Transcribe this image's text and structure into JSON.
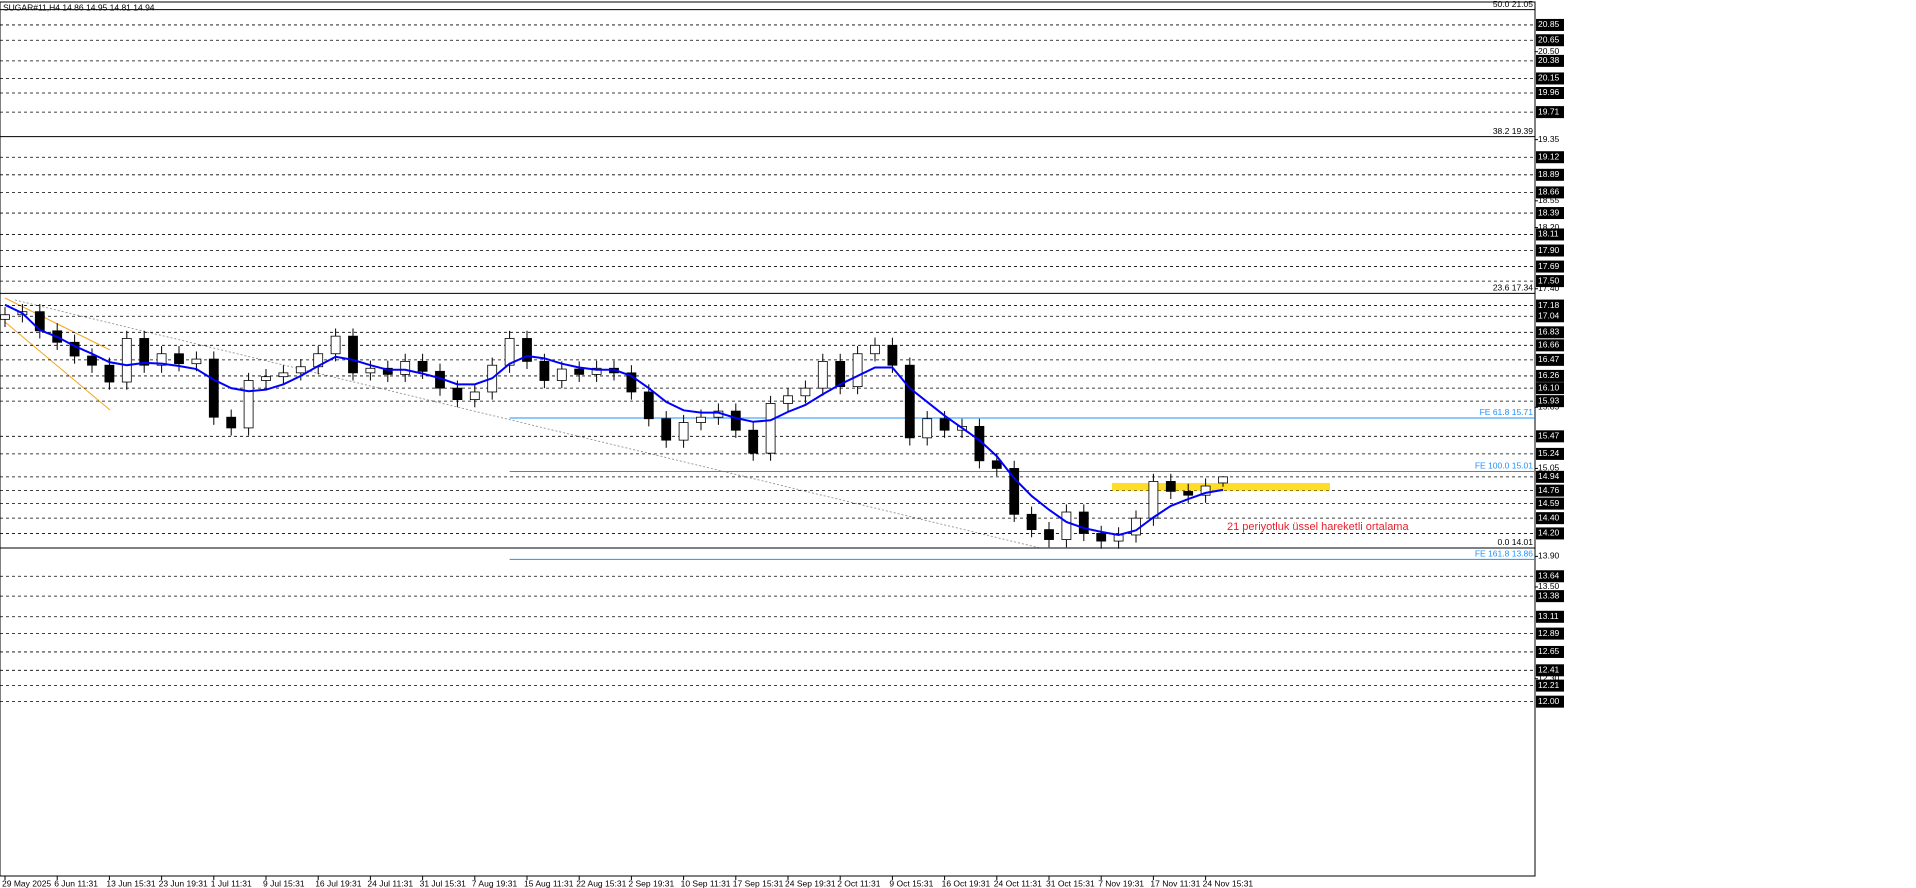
{
  "chart_data": {
    "type": "candlestick",
    "header": "SUGAR#11,H4  14.86 14.95 14.81 14.94",
    "categories": [
      "29 May 2025",
      null,
      null,
      "6 Jun 11:31",
      null,
      null,
      "13 Jun 15:31",
      null,
      null,
      "23 Jun 19:31",
      null,
      null,
      "1 Jul 11:31",
      null,
      null,
      "9 Jul 15:31",
      null,
      null,
      "16 Jul 19:31",
      null,
      null,
      "24 Jul 11:31",
      null,
      null,
      "31 Jul 15:31",
      null,
      null,
      "7 Aug 19:31",
      null,
      null,
      "15 Aug 11:31",
      null,
      null,
      "22 Aug 15:31",
      null,
      null,
      "2 Sep 19:31",
      null,
      null,
      "10 Sep 11:31",
      null,
      null,
      "17 Sep 15:31",
      null,
      null,
      "24 Sep 19:31",
      null,
      null,
      "2 Oct 11:31",
      null,
      null,
      "9 Oct 15:31",
      null,
      null,
      "16 Oct 19:31",
      null,
      null,
      "24 Oct 11:31",
      null,
      null,
      "31 Oct 15:31",
      null,
      null,
      "7 Nov 19:31",
      null,
      null,
      "17 Nov 11:31",
      null,
      null,
      "24 Nov 15:31",
      null
    ],
    "open": [
      17.0,
      17.06,
      17.1,
      16.85,
      16.7,
      16.52,
      16.4,
      16.18,
      16.75,
      16.4,
      16.55,
      16.42,
      16.48,
      15.72,
      15.58,
      16.2,
      16.25,
      16.3,
      16.38,
      16.55,
      16.78,
      16.3,
      16.36,
      16.28,
      16.45,
      16.32,
      16.1,
      15.95,
      16.05,
      16.4,
      16.75,
      16.45,
      16.2,
      16.35,
      16.28,
      16.36,
      16.3,
      16.05,
      15.7,
      15.42,
      15.65,
      15.72,
      15.8,
      15.55,
      15.25,
      15.9,
      16.0,
      16.1,
      16.45,
      16.12,
      16.55,
      16.66,
      16.4,
      15.45,
      15.7,
      15.55,
      15.6,
      15.15,
      15.05,
      14.45,
      14.25,
      14.12,
      14.48,
      14.2,
      14.1,
      14.18,
      14.4,
      14.88,
      14.75,
      14.7,
      14.86
    ],
    "high": [
      17.16,
      17.2,
      17.2,
      16.95,
      16.8,
      16.62,
      16.5,
      16.85,
      16.85,
      16.65,
      16.65,
      16.58,
      16.58,
      15.82,
      16.3,
      16.35,
      16.4,
      16.48,
      16.65,
      16.88,
      16.88,
      16.46,
      16.46,
      16.55,
      16.55,
      16.42,
      16.2,
      16.15,
      16.5,
      16.85,
      16.85,
      16.55,
      16.45,
      16.45,
      16.46,
      16.46,
      16.4,
      16.15,
      15.8,
      15.75,
      15.82,
      15.9,
      15.9,
      15.65,
      16.0,
      16.1,
      16.2,
      16.55,
      16.55,
      16.65,
      16.76,
      16.76,
      16.5,
      15.8,
      15.8,
      15.7,
      15.7,
      15.25,
      15.15,
      14.55,
      14.35,
      14.58,
      14.58,
      14.3,
      14.28,
      14.5,
      14.98,
      14.98,
      14.85,
      14.92,
      14.95
    ],
    "low": [
      16.9,
      16.96,
      16.75,
      16.6,
      16.42,
      16.3,
      16.08,
      16.08,
      16.3,
      16.3,
      16.32,
      16.32,
      15.62,
      15.48,
      15.48,
      16.1,
      16.15,
      16.2,
      16.28,
      16.45,
      16.2,
      16.2,
      16.18,
      16.18,
      16.22,
      16.0,
      15.85,
      15.85,
      15.95,
      16.3,
      16.35,
      16.1,
      16.1,
      16.18,
      16.18,
      16.2,
      15.95,
      15.6,
      15.32,
      15.32,
      15.55,
      15.62,
      15.45,
      15.15,
      15.15,
      15.8,
      15.9,
      16.0,
      16.02,
      16.02,
      16.45,
      16.3,
      15.35,
      15.35,
      15.45,
      15.45,
      15.05,
      14.95,
      14.35,
      14.15,
      14.02,
      14.02,
      14.1,
      14.0,
      14.0,
      14.08,
      14.3,
      14.65,
      14.6,
      14.6,
      14.81
    ],
    "close": [
      17.06,
      17.1,
      16.85,
      16.7,
      16.52,
      16.4,
      16.18,
      16.75,
      16.4,
      16.55,
      16.42,
      16.48,
      15.72,
      15.58,
      16.2,
      16.25,
      16.3,
      16.38,
      16.55,
      16.78,
      16.3,
      16.36,
      16.28,
      16.45,
      16.32,
      16.1,
      15.95,
      16.05,
      16.4,
      16.75,
      16.45,
      16.2,
      16.35,
      16.28,
      16.36,
      16.3,
      16.05,
      15.7,
      15.42,
      15.65,
      15.72,
      15.8,
      15.55,
      15.25,
      15.9,
      16.0,
      16.1,
      16.45,
      16.12,
      16.55,
      16.66,
      16.4,
      15.45,
      15.7,
      15.55,
      15.6,
      15.15,
      15.05,
      14.45,
      14.25,
      14.12,
      14.48,
      14.2,
      14.1,
      14.18,
      14.4,
      14.88,
      14.75,
      14.7,
      14.82,
      14.94
    ],
    "ema": {
      "color": "#0000ff",
      "values": [
        17.19,
        17.08,
        16.86,
        16.77,
        16.65,
        16.55,
        16.44,
        16.4,
        16.43,
        16.42,
        16.39,
        16.35,
        16.21,
        16.1,
        16.06,
        16.08,
        16.15,
        16.26,
        16.39,
        16.51,
        16.47,
        16.4,
        16.34,
        16.34,
        16.29,
        16.23,
        16.15,
        16.15,
        16.23,
        16.42,
        16.52,
        16.49,
        16.42,
        16.37,
        16.34,
        16.34,
        16.26,
        16.1,
        15.92,
        15.81,
        15.78,
        15.78,
        15.71,
        15.66,
        15.68,
        15.79,
        15.88,
        16.02,
        16.15,
        16.26,
        16.37,
        16.37,
        16.1,
        15.92,
        15.74,
        15.58,
        15.42,
        15.21,
        14.92,
        14.69,
        14.51,
        14.35,
        14.27,
        14.22,
        14.18,
        14.24,
        14.41,
        14.56,
        14.65,
        14.73,
        14.77
      ]
    },
    "annotation": "21 periyotluk üssel hareketli ortalama",
    "zone": {
      "from": 14.76,
      "to": 14.86,
      "color": "#ffd700"
    },
    "ylim": [
      9.72,
      21.15
    ],
    "yticks": [
      {
        "value": 20.5,
        "label": "20.50"
      },
      19.35,
      18.55,
      {
        "value": 18.2,
        "label": "18.20"
      },
      {
        "value": 17.4,
        "label": "17.40"
      },
      15.85,
      15.05,
      {
        "value": 13.9,
        "label": "13.90"
      },
      {
        "value": 13.5,
        "label": "13.50"
      },
      {
        "value": 12.3,
        "label": "12.30"
      }
    ],
    "hlines": [
      20.85,
      20.65,
      20.38,
      20.15,
      19.96,
      19.71,
      19.12,
      18.89,
      18.66,
      18.39,
      18.11,
      {
        "value": 17.9,
        "label": "17.90"
      },
      17.69,
      {
        "value": 17.5,
        "label": "17.50"
      },
      17.18,
      17.04,
      16.83,
      16.66,
      16.47,
      16.26,
      {
        "value": 16.1,
        "label": "16.10"
      },
      15.93,
      15.47,
      15.24,
      14.94,
      14.76,
      14.59,
      {
        "value": 14.4,
        "label": "14.40"
      },
      {
        "value": 14.2,
        "label": "14.20"
      },
      13.64,
      13.38,
      13.11,
      12.89,
      12.65,
      12.41,
      12.21,
      {
        "value": 12,
        "label": "12.00"
      }
    ],
    "levels": [
      {
        "label": "50.0 21.05",
        "value": 21.05,
        "color": "#000000"
      },
      {
        "label": "38.2 19.39",
        "value": 19.39,
        "color": "#000000"
      },
      {
        "label": "23.6 17.34",
        "value": 17.34,
        "color": "#000000"
      },
      {
        "label": "0.0 14.01",
        "value": 14.01,
        "color": "#000000"
      },
      {
        "label": "FE 61.8 15.71",
        "value": 15.71,
        "color": "#1e90ff"
      },
      {
        "label": "FE 100.0 15.01",
        "value": 15.01,
        "color": "#1e90ff"
      },
      {
        "label": "FE 161.8 13.86",
        "value": 13.86,
        "color": "#1e90ff"
      }
    ]
  }
}
